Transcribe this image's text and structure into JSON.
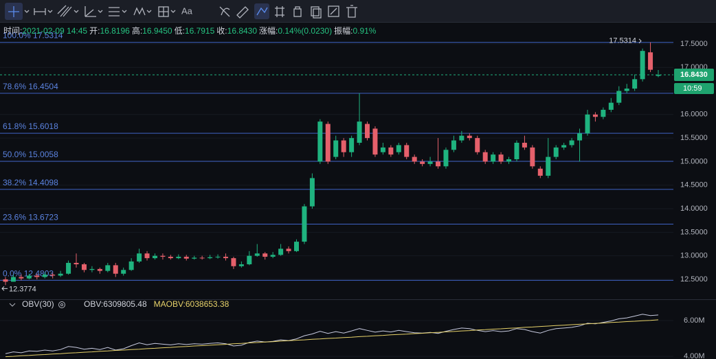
{
  "toolbar": {
    "text_tool": "Aa"
  },
  "info_bar": [
    {
      "label": "时间:",
      "value": "2021-02-09 14:45"
    },
    {
      "label": "开:",
      "value": "16.8196"
    },
    {
      "label": "高:",
      "value": "16.9450"
    },
    {
      "label": "低:",
      "value": "16.7915"
    },
    {
      "label": "收:",
      "value": "16.8430"
    },
    {
      "label": "涨幅:",
      "value": "0.14%(0.0230)"
    },
    {
      "label": "振幅:",
      "value": "0.91%"
    }
  ],
  "chart_data": [
    {
      "type": "candlestick",
      "up_color": "#1fb37f",
      "down_color": "#e5606b",
      "open": [
        12.5,
        12.45,
        12.55,
        12.52,
        12.58,
        12.55,
        12.6,
        12.58,
        12.62,
        12.85,
        12.82,
        12.7,
        12.72,
        12.68,
        12.8,
        12.62,
        12.7,
        12.88,
        13.05,
        12.95,
        13.0,
        12.98,
        12.95,
        12.98,
        12.94,
        12.96,
        12.95,
        12.97,
        12.98,
        12.95,
        12.78,
        12.82,
        13.0,
        13.05,
        12.98,
        13.02,
        13.15,
        13.1,
        13.3,
        14.05,
        15.0,
        15.8,
        15.1,
        15.45,
        15.2,
        15.4,
        15.8,
        15.7,
        15.2,
        15.3,
        15.2,
        15.35,
        15.1,
        15.0,
        14.95,
        15.0,
        14.9,
        15.25,
        15.45,
        15.55,
        15.5,
        15.2,
        15.0,
        15.15,
        15.0,
        15.05,
        15.4,
        15.3,
        14.85,
        14.7,
        15.1,
        15.3,
        15.35,
        15.45,
        15.6,
        16.0,
        15.95,
        16.1,
        16.25,
        16.5,
        16.55,
        16.75,
        17.32,
        16.8196
      ],
      "high": [
        12.55,
        12.6,
        12.6,
        12.62,
        12.62,
        12.65,
        12.64,
        12.68,
        12.9,
        13.05,
        12.85,
        12.78,
        12.75,
        12.85,
        12.85,
        12.75,
        12.95,
        13.15,
        13.1,
        13.05,
        13.05,
        13.02,
        13.03,
        13.02,
        13.0,
        13.0,
        13.02,
        13.03,
        13.05,
        12.98,
        12.88,
        13.1,
        13.25,
        13.08,
        13.08,
        13.25,
        13.2,
        13.35,
        14.1,
        14.75,
        15.9,
        15.85,
        15.55,
        15.5,
        15.55,
        16.45,
        15.85,
        15.75,
        15.4,
        15.35,
        15.4,
        15.4,
        15.15,
        15.05,
        15.1,
        15.5,
        15.3,
        15.55,
        15.65,
        15.6,
        15.55,
        15.25,
        15.2,
        15.2,
        15.1,
        15.45,
        15.55,
        15.35,
        14.9,
        15.5,
        15.35,
        15.4,
        15.5,
        15.7,
        16.1,
        16.05,
        16.15,
        16.35,
        16.6,
        16.65,
        16.85,
        17.4,
        17.5314,
        16.945
      ],
      "low": [
        12.3774,
        12.45,
        12.48,
        12.5,
        12.5,
        12.52,
        12.52,
        12.55,
        12.6,
        12.75,
        12.65,
        12.65,
        12.62,
        12.65,
        12.55,
        12.58,
        12.68,
        12.85,
        12.9,
        12.92,
        12.92,
        12.92,
        12.93,
        12.9,
        12.92,
        12.92,
        12.93,
        12.94,
        12.9,
        12.72,
        12.75,
        12.8,
        12.98,
        12.92,
        12.95,
        13.0,
        13.05,
        13.08,
        13.25,
        14.0,
        14.95,
        14.95,
        15.05,
        15.1,
        15.1,
        15.35,
        15.45,
        15.1,
        15.15,
        15.1,
        15.15,
        15.05,
        14.95,
        14.9,
        14.9,
        14.85,
        14.85,
        15.2,
        15.4,
        15.45,
        15.15,
        14.95,
        14.95,
        14.95,
        14.95,
        15.0,
        15.25,
        14.85,
        14.65,
        14.65,
        15.05,
        15.25,
        15.3,
        15.0,
        15.55,
        15.85,
        15.9,
        16.05,
        16.2,
        16.45,
        16.5,
        16.7,
        16.9,
        16.7915
      ],
      "close": [
        12.45,
        12.55,
        12.52,
        12.58,
        12.55,
        12.6,
        12.58,
        12.62,
        12.85,
        12.82,
        12.7,
        12.72,
        12.68,
        12.8,
        12.62,
        12.7,
        12.88,
        13.05,
        12.95,
        13.0,
        12.98,
        12.95,
        12.98,
        12.94,
        12.96,
        12.95,
        12.97,
        12.98,
        12.95,
        12.78,
        12.82,
        13.0,
        13.05,
        12.98,
        13.02,
        13.15,
        13.1,
        13.3,
        14.05,
        14.65,
        15.85,
        15.0,
        15.45,
        15.2,
        15.5,
        15.85,
        15.5,
        15.15,
        15.3,
        15.15,
        15.35,
        15.1,
        15.0,
        14.95,
        15.0,
        14.9,
        15.25,
        15.45,
        15.55,
        15.5,
        15.2,
        15.0,
        15.15,
        15.0,
        15.05,
        15.4,
        15.3,
        14.9,
        14.7,
        15.1,
        15.3,
        15.35,
        15.45,
        15.6,
        16.0,
        15.95,
        16.1,
        16.25,
        16.5,
        16.55,
        16.75,
        17.35,
        16.95,
        16.843
      ],
      "ylim": [
        12.15,
        17.95
      ],
      "yticks": [
        {
          "value": 17.5,
          "label": "17.5000"
        },
        {
          "value": 17,
          "label": "17.0000"
        },
        {
          "value": 16.5,
          "label": "16.5000"
        },
        {
          "value": 16,
          "label": "16.0000"
        },
        {
          "value": 15.5,
          "label": "15.5000"
        },
        {
          "value": 15,
          "label": "15.0000"
        },
        {
          "value": 14.5,
          "label": "14.5000"
        },
        {
          "value": 14,
          "label": "14.0000"
        },
        {
          "value": 13.5,
          "label": "13.5000"
        },
        {
          "value": 13,
          "label": "13.0000"
        },
        {
          "value": 12.5,
          "label": "12.5000"
        }
      ],
      "fib_color": "#3f63c6",
      "fib_levels": [
        {
          "ratio": "100.0%",
          "value": 17.5314
        },
        {
          "ratio": "78.6%",
          "value": 16.4504
        },
        {
          "ratio": "61.8%",
          "value": 15.6018
        },
        {
          "ratio": "50.0%",
          "value": 15.0058
        },
        {
          "ratio": "38.2%",
          "value": 14.4098
        },
        {
          "ratio": "23.6%",
          "value": 13.6723
        },
        {
          "ratio": "0.0%",
          "value": 12.4803
        }
      ],
      "last_price": {
        "value": 16.843,
        "label": "16.8430"
      },
      "countdown": "10:59",
      "high_marker": {
        "value": 17.5314,
        "label": "17.5314"
      },
      "low_marker": {
        "value": 12.3774,
        "label": "12.3774"
      }
    },
    {
      "type": "line",
      "title": "OBV(30)",
      "ylim": [
        3.85,
        7.15
      ],
      "yticks": [
        {
          "value": 6,
          "label": "6.00M"
        },
        {
          "value": 4,
          "label": "4.00M"
        }
      ],
      "series": [
        {
          "name": "OBV:6309805.48",
          "color": "#c8cbe0",
          "values": [
            4.15,
            4.25,
            4.2,
            4.3,
            4.28,
            4.35,
            4.3,
            4.38,
            4.55,
            4.5,
            4.4,
            4.45,
            4.38,
            4.5,
            4.35,
            4.42,
            4.6,
            4.75,
            4.65,
            4.72,
            4.68,
            4.64,
            4.7,
            4.66,
            4.7,
            4.68,
            4.72,
            4.75,
            4.7,
            4.58,
            4.62,
            4.78,
            4.85,
            4.8,
            4.84,
            4.92,
            4.88,
            4.98,
            5.15,
            5.25,
            5.4,
            5.28,
            5.38,
            5.3,
            5.42,
            5.55,
            5.45,
            5.35,
            5.42,
            5.36,
            5.45,
            5.38,
            5.32,
            5.3,
            5.34,
            5.28,
            5.4,
            5.5,
            5.58,
            5.55,
            5.45,
            5.38,
            5.44,
            5.38,
            5.42,
            5.55,
            5.5,
            5.38,
            5.3,
            5.45,
            5.55,
            5.58,
            5.62,
            5.7,
            5.85,
            5.82,
            5.9,
            5.98,
            6.1,
            6.15,
            6.25,
            6.35,
            6.28,
            6.31
          ]
        },
        {
          "name": "MAOBV:6038653.38",
          "color": "#e8d36a",
          "values": [
            3.98,
            4.0,
            4.03,
            4.05,
            4.08,
            4.1,
            4.13,
            4.15,
            4.18,
            4.2,
            4.23,
            4.25,
            4.28,
            4.3,
            4.33,
            4.35,
            4.38,
            4.4,
            4.43,
            4.45,
            4.48,
            4.5,
            4.53,
            4.55,
            4.58,
            4.6,
            4.62,
            4.65,
            4.67,
            4.7,
            4.72,
            4.75,
            4.77,
            4.8,
            4.82,
            4.85,
            4.87,
            4.9,
            4.92,
            4.95,
            4.97,
            5.0,
            5.02,
            5.05,
            5.07,
            5.1,
            5.12,
            5.15,
            5.17,
            5.2,
            5.22,
            5.24,
            5.27,
            5.29,
            5.32,
            5.34,
            5.37,
            5.39,
            5.42,
            5.44,
            5.47,
            5.49,
            5.52,
            5.54,
            5.57,
            5.59,
            5.62,
            5.64,
            5.67,
            5.69,
            5.72,
            5.74,
            5.77,
            5.79,
            5.82,
            5.84,
            5.86,
            5.89,
            5.91,
            5.94,
            5.96,
            5.99,
            6.01,
            6.04
          ]
        }
      ]
    }
  ]
}
